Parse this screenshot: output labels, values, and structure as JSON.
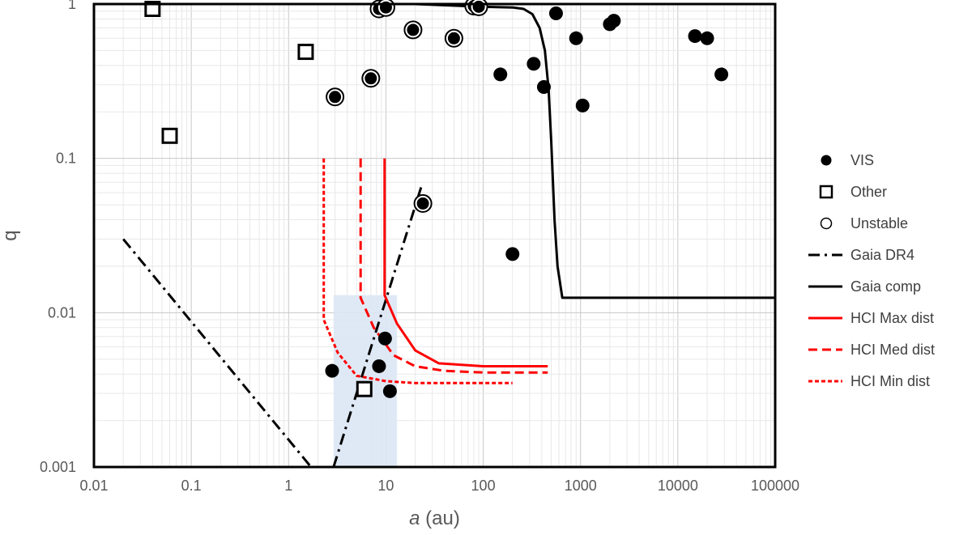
{
  "chart_data": {
    "type": "scatter",
    "title": "",
    "xlabel": {
      "italic": "a",
      "rest": " (au)"
    },
    "ylabel": "q",
    "x_scale": "log",
    "y_scale": "log",
    "xlim": [
      0.01,
      100000
    ],
    "ylim": [
      0.001,
      1
    ],
    "x_ticks": [
      "0.01",
      "0.1",
      "1",
      "10",
      "100",
      "1000",
      "10000",
      "100000"
    ],
    "y_ticks": [
      "0.001",
      "0.01",
      "0.1",
      "1"
    ],
    "grid": true,
    "legend_position": "right",
    "shaded_region": {
      "x": [
        2.9,
        13
      ],
      "y": [
        0.001,
        0.013
      ],
      "color": "#dbe7f4"
    },
    "series": [
      {
        "name": "VIS",
        "kind": "points",
        "marker": "filled-circle",
        "color": "#000000",
        "points": [
          [
            150,
            0.35
          ],
          [
            330,
            0.41
          ],
          [
            420,
            0.29
          ],
          [
            560,
            0.87
          ],
          [
            900,
            0.6
          ],
          [
            1050,
            0.22
          ],
          [
            2000,
            0.74
          ],
          [
            2200,
            0.78
          ],
          [
            15000,
            0.62
          ],
          [
            20000,
            0.6
          ],
          [
            28000,
            0.35
          ],
          [
            200,
            0.024
          ],
          [
            2.8,
            0.0042
          ],
          [
            8.5,
            0.0045
          ],
          [
            9.8,
            0.0068
          ],
          [
            11,
            0.0031
          ]
        ]
      },
      {
        "name": "Other",
        "kind": "points",
        "marker": "open-square",
        "color": "#000000",
        "points": [
          [
            0.04,
            0.93
          ],
          [
            1.5,
            0.49
          ],
          [
            0.06,
            0.14
          ],
          [
            6,
            0.0032
          ]
        ]
      },
      {
        "name": "Unstable",
        "kind": "points",
        "marker": "ringed-circle",
        "color": "#000000",
        "points": [
          [
            3,
            0.25
          ],
          [
            7,
            0.33
          ],
          [
            8.5,
            0.93
          ],
          [
            10,
            0.95
          ],
          [
            19,
            0.68
          ],
          [
            50,
            0.6
          ],
          [
            80,
            0.97
          ],
          [
            90,
            0.96
          ],
          [
            24,
            0.051
          ]
        ]
      },
      {
        "name": "Gaia DR4",
        "kind": "line",
        "dash": "dash-dot",
        "color": "#000000",
        "segments": [
          [
            [
              0.02,
              0.03
            ],
            [
              1.7,
              0.001
            ]
          ],
          [
            [
              2.9,
              0.001
            ],
            [
              23,
              0.065
            ]
          ]
        ]
      },
      {
        "name": "Gaia comp",
        "kind": "line",
        "dash": "solid",
        "color": "#000000",
        "segments": [
          [
            [
              20,
              1.0
            ],
            [
              100,
              0.96
            ],
            [
              200,
              0.95
            ],
            [
              260,
              0.93
            ],
            [
              320,
              0.86
            ],
            [
              380,
              0.7
            ],
            [
              430,
              0.5
            ],
            [
              470,
              0.28
            ],
            [
              500,
              0.13
            ],
            [
              540,
              0.04
            ],
            [
              580,
              0.02
            ],
            [
              650,
              0.0125
            ],
            [
              100000,
              0.0125
            ]
          ]
        ]
      },
      {
        "name": "HCI Max dist",
        "kind": "line",
        "dash": "solid",
        "color": "#ff0000",
        "segments": [
          [
            [
              9.7,
              0.1
            ],
            [
              9.7,
              0.013
            ],
            [
              13,
              0.0085
            ],
            [
              20,
              0.0057
            ],
            [
              35,
              0.0047
            ],
            [
              100,
              0.0045
            ],
            [
              460,
              0.0045
            ]
          ]
        ]
      },
      {
        "name": "HCI Med dist",
        "kind": "line",
        "dash": "dashed",
        "color": "#ff0000",
        "segments": [
          [
            [
              5.5,
              0.1
            ],
            [
              5.5,
              0.0125
            ],
            [
              7.5,
              0.008
            ],
            [
              12,
              0.0053
            ],
            [
              20,
              0.0045
            ],
            [
              40,
              0.0042
            ],
            [
              100,
              0.0041
            ],
            [
              460,
              0.0041
            ]
          ]
        ]
      },
      {
        "name": "HCI Min dist",
        "kind": "line",
        "dash": "dotted",
        "color": "#ff0000",
        "segments": [
          [
            [
              2.3,
              0.1
            ],
            [
              2.3,
              0.009
            ],
            [
              3.2,
              0.0055
            ],
            [
              5,
              0.0039
            ],
            [
              10,
              0.0036
            ],
            [
              20,
              0.0035
            ],
            [
              100,
              0.0035
            ],
            [
              200,
              0.0035
            ]
          ]
        ]
      }
    ]
  }
}
